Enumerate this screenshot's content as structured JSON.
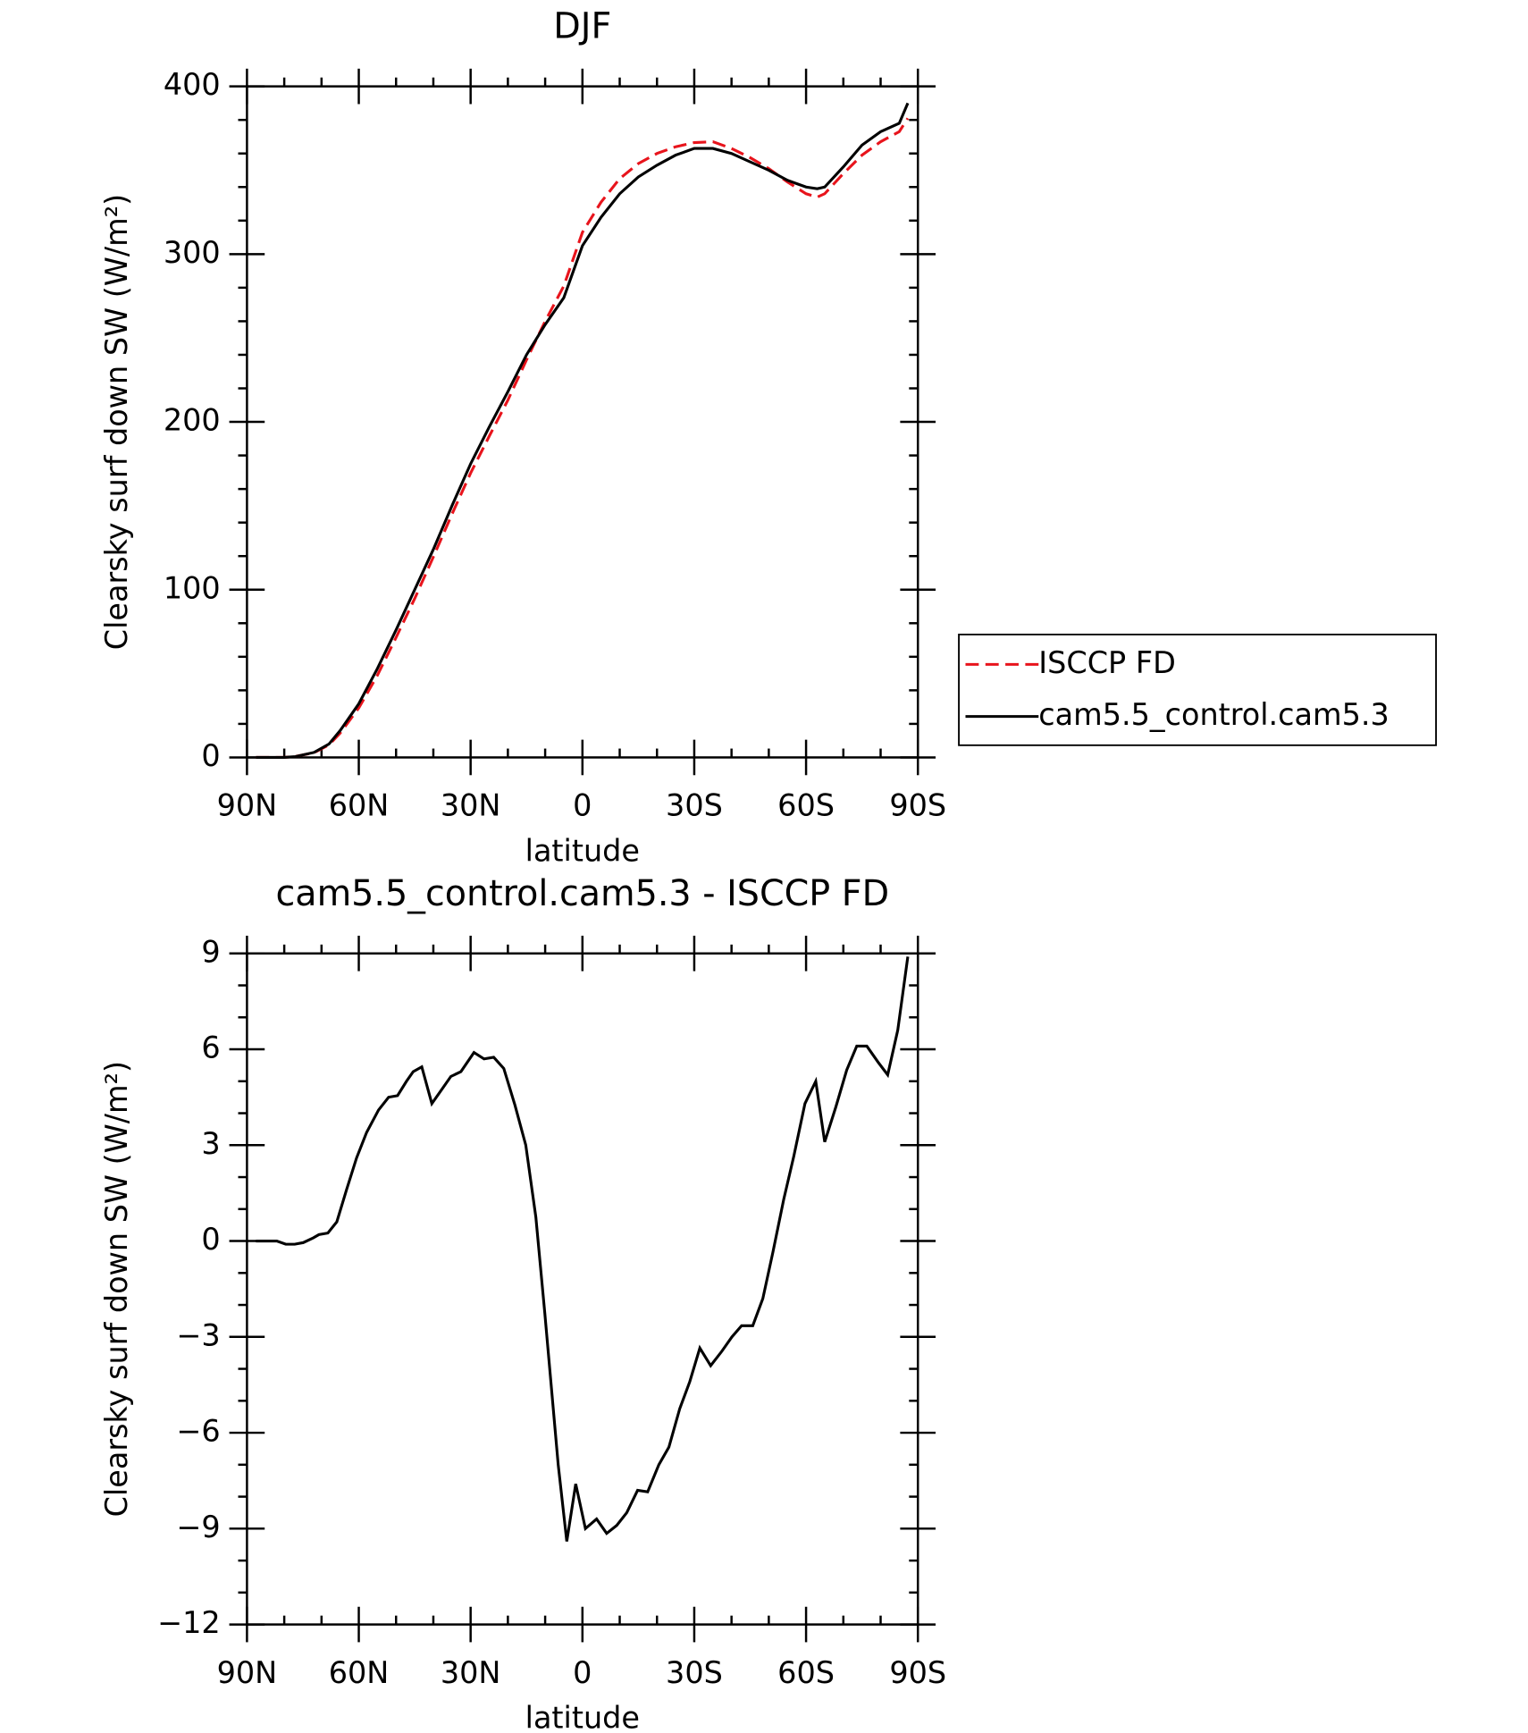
{
  "chart_data": [
    {
      "type": "line",
      "title": "DJF",
      "xlabel": "latitude",
      "ylabel": "Clearsky surf down SW (W/m²)",
      "x": [
        87.6,
        80,
        77,
        72,
        68,
        65,
        60,
        55,
        50,
        45,
        40,
        35,
        30,
        25,
        20,
        15,
        10,
        5,
        0,
        -5,
        -10,
        -15,
        -20,
        -25,
        -30,
        -35,
        -40,
        -45,
        -50,
        -55,
        -60,
        -63,
        -65,
        -70,
        -75,
        -80,
        -85,
        -87.3
      ],
      "series": [
        {
          "name": "ISCCP FD",
          "color": "#e8141c",
          "line_style": "dashed",
          "values": [
            0,
            0,
            0.6,
            2.8,
            7.5,
            14.5,
            29.5,
            49,
            71.5,
            94.7,
            119.5,
            145,
            169.5,
            191.5,
            213,
            237,
            260,
            281,
            313,
            331,
            345,
            354,
            360,
            364,
            366.5,
            367,
            363,
            357.5,
            351,
            343,
            336,
            334,
            336,
            348,
            359,
            367,
            373,
            381
          ]
        },
        {
          "name": "cam5.5_control.cam5.3",
          "color": "#000000",
          "line_style": "solid",
          "values": [
            0,
            0,
            0.5,
            3,
            8,
            16,
            32,
            53,
            76,
            100,
            124,
            150,
            175,
            197,
            218,
            240,
            258,
            274,
            305,
            322,
            336,
            346,
            353,
            359,
            363,
            363,
            360,
            355,
            350,
            344,
            340,
            339,
            340,
            352,
            365,
            373,
            378,
            390
          ]
        }
      ],
      "xlim": [
        90,
        -90
      ],
      "ylim": [
        0,
        400
      ],
      "xticks": [
        {
          "value": 90,
          "label": "90N"
        },
        {
          "value": 60,
          "label": "60N"
        },
        {
          "value": 30,
          "label": "30N"
        },
        0,
        {
          "value": -30,
          "label": "30S"
        },
        {
          "value": -60,
          "label": "60S"
        },
        {
          "value": -90,
          "label": "90S"
        }
      ],
      "yticks": [
        0,
        100,
        200,
        300,
        400
      ],
      "legend": "outside right"
    },
    {
      "type": "line",
      "title": "cam5.5_control.cam5.3 - ISCCP FD",
      "xlabel": "latitude",
      "ylabel": "Clearsky surf down SW (W/m²)",
      "x": [
        87.6,
        82,
        79.6,
        77.2,
        74.9,
        72.2,
        70.7,
        68.3,
        65.9,
        63.3,
        60.6,
        57.9,
        54.7,
        52,
        49.6,
        47.2,
        45.4,
        43.1,
        40.4,
        37.7,
        35.3,
        32.6,
        29.1,
        26.4,
        23.8,
        21.1,
        18.1,
        15.2,
        12.5,
        10.1,
        6.5,
        4.2,
        1.8,
        -0.8,
        -3.8,
        -6.5,
        -9.2,
        -11.9,
        -14.8,
        -17.5,
        -20.5,
        -23.2,
        -26.1,
        -28.8,
        -31.5,
        -34.4,
        -37.4,
        -40.1,
        -42.7,
        -45.7,
        -48.4,
        -51.1,
        -54,
        -56.7,
        -59.7,
        -62.6,
        -65,
        -68,
        -70.9,
        -73.6,
        -76.3,
        -79.3,
        -81.9,
        -84.6,
        -87.3
      ],
      "series": [
        {
          "color": "#000000",
          "line_style": "solid",
          "values": [
            0,
            0,
            -0.1,
            -0.1,
            -0.05,
            0.1,
            0.2,
            0.25,
            0.6,
            1.6,
            2.6,
            3.4,
            4.1,
            4.5,
            4.55,
            5,
            5.3,
            5.45,
            4.3,
            4.75,
            5.15,
            5.3,
            5.9,
            5.7,
            5.75,
            5.4,
            4.25,
            3,
            0.75,
            -2.25,
            -7,
            -9.4,
            -7.6,
            -9,
            -8.7,
            -9.15,
            -8.9,
            -8.5,
            -7.8,
            -7.85,
            -7,
            -6.45,
            -5.25,
            -4.4,
            -3.35,
            -3.9,
            -3.45,
            -3,
            -2.65,
            -2.65,
            -1.8,
            -0.35,
            1.3,
            2.65,
            4.3,
            5,
            3.1,
            4.2,
            5.35,
            6.1,
            6.1,
            5.6,
            5.2,
            6.6,
            8.9
          ]
        }
      ],
      "xlim": [
        90,
        -90
      ],
      "ylim": [
        -12,
        9
      ],
      "xticks": [
        {
          "value": 90,
          "label": "90N"
        },
        {
          "value": 60,
          "label": "60N"
        },
        {
          "value": 30,
          "label": "30N"
        },
        0,
        {
          "value": -30,
          "label": "30S"
        },
        {
          "value": -60,
          "label": "60S"
        },
        {
          "value": -90,
          "label": "90S"
        }
      ],
      "yticks": [
        {
          "value": -12,
          "label": "−12"
        },
        {
          "value": -9,
          "label": "−9"
        },
        {
          "value": -6,
          "label": "−6"
        },
        {
          "value": -3,
          "label": "−3"
        },
        0,
        3,
        6,
        9
      ]
    }
  ]
}
